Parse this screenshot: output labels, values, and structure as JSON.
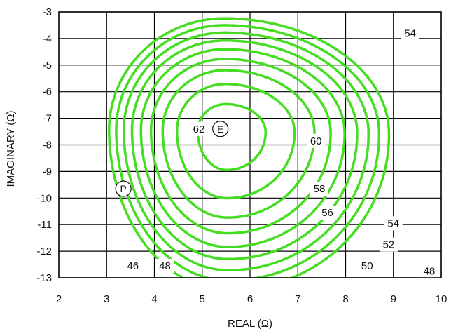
{
  "chart_data": {
    "type": "contour",
    "xlabel": "REAL (Ω)",
    "ylabel": "IMAGINARY (Ω)",
    "xlim": [
      2,
      10
    ],
    "ylim": [
      -13,
      -3
    ],
    "x_ticks": [
      "2",
      "3",
      "4",
      "5",
      "6",
      "7",
      "8",
      "9",
      "10"
    ],
    "y_ticks": [
      "-3",
      "-4",
      "-5",
      "-6",
      "-7",
      "-8",
      "-9",
      "-10",
      "-11",
      "-12",
      "-13"
    ],
    "grid": true,
    "line_color": "#44dd22",
    "contours": [
      {
        "level": 46,
        "label": "46",
        "label_at": [
          3.55,
          -12.55
        ]
      },
      {
        "level": 48,
        "label": "48",
        "label_at": [
          4.22,
          -12.55
        ]
      },
      {
        "level": 48,
        "label": "48",
        "label_at": [
          9.75,
          -12.75
        ]
      },
      {
        "level": 50,
        "label": "50",
        "label_at": [
          8.45,
          -12.55
        ]
      },
      {
        "level": 52,
        "label": "52",
        "label_at": [
          8.9,
          -11.75
        ]
      },
      {
        "level": 54,
        "label": "54",
        "label_at": [
          9.0,
          -10.95
        ]
      },
      {
        "level": 54,
        "label": "54",
        "label_at": [
          9.35,
          -3.8
        ]
      },
      {
        "level": 56,
        "label": "56",
        "label_at": [
          7.62,
          -10.55
        ]
      },
      {
        "level": 58,
        "label": "58",
        "label_at": [
          7.45,
          -9.65
        ]
      },
      {
        "level": 60,
        "label": "60",
        "label_at": [
          7.38,
          -7.85
        ]
      },
      {
        "level": 62,
        "label": "62",
        "label_at": [
          4.93,
          -7.4
        ]
      }
    ],
    "points": [
      {
        "label": "E",
        "x": 5.38,
        "y": -7.4
      },
      {
        "label": "P",
        "x": 3.35,
        "y": -9.65
      }
    ]
  }
}
